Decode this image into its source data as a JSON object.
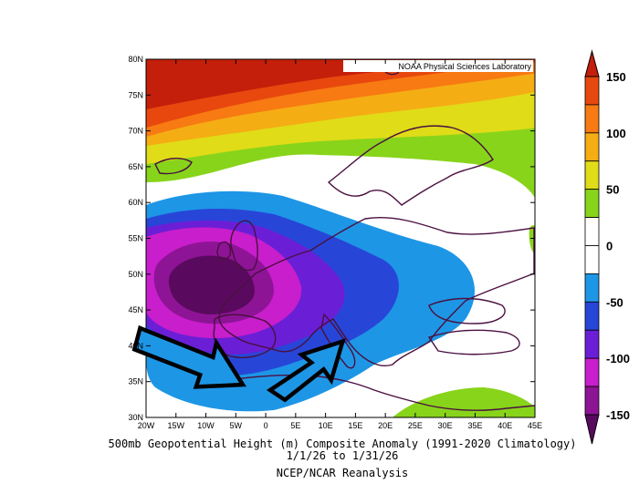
{
  "map": {
    "credit": "NOAA Physical Sciences Laboratory",
    "lat_labels": [
      "80N",
      "75N",
      "70N",
      "65N",
      "60N",
      "55N",
      "50N",
      "45N",
      "40N",
      "35N",
      "30N"
    ],
    "lon_labels": [
      "20W",
      "15W",
      "10W",
      "5W",
      "0",
      "5E",
      "10E",
      "15E",
      "20E",
      "25E",
      "30E",
      "35E",
      "40E",
      "45E"
    ],
    "colors": {
      "c_m150": "#5a0a5e",
      "c_m125": "#8e1496",
      "c_m100": "#c81ecc",
      "c_m75": "#6a1fd6",
      "c_m50": "#2746d8",
      "c_m25": "#1e96e6",
      "c_0": "#ffffff",
      "c_p25": "#88d41a",
      "c_p50": "#e0dc18",
      "c_p75": "#f5ad14",
      "c_p100": "#f77a12",
      "c_p125": "#e8480e",
      "c_p150": "#c41f0a",
      "coast": "#4a1040",
      "arrow_fill": "#1e96e6",
      "arrow_outline": "#000000"
    },
    "annotation_arrows": [
      "arrow-west-atlantic",
      "arrow-mediterranean"
    ]
  },
  "colorbar": {
    "labels": [
      "150",
      "100",
      "50",
      "0",
      "-50",
      "-100",
      "-150"
    ]
  },
  "captions": {
    "line1": "500mb Geopotential Height (m) Composite Anomaly (1991-2020 Climatology)",
    "line2": "1/1/26  to 1/31/26",
    "line3": "NCEP/NCAR Reanalysis"
  }
}
